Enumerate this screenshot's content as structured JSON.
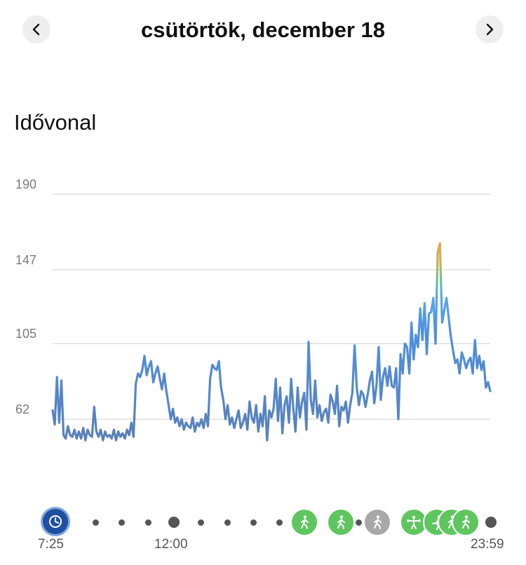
{
  "header": {
    "date_title": "csütörtök, december 18",
    "prev_icon": "chevron-left-icon",
    "next_icon": "chevron-right-icon"
  },
  "section": {
    "title": "Idővonal"
  },
  "chart_data": {
    "type": "line",
    "title": "",
    "xlabel": "",
    "ylabel": "",
    "y_ticks": [
      "190",
      "147",
      "105",
      "62"
    ],
    "ylim": [
      20,
      195
    ],
    "x_range": [
      "7:25",
      "23:59"
    ],
    "grid": true,
    "series": [
      {
        "values": [
          67,
          59,
          86,
          60,
          84,
          53,
          51,
          58,
          53,
          52,
          56,
          51,
          55,
          51,
          57,
          50,
          56,
          53,
          52,
          69,
          55,
          52,
          56,
          50,
          55,
          52,
          53,
          51,
          56,
          50,
          55,
          52,
          54,
          51,
          56,
          53,
          60,
          52,
          82,
          88,
          86,
          90,
          98,
          87,
          92,
          95,
          83,
          88,
          92,
          85,
          79,
          88,
          78,
          70,
          62,
          68,
          60,
          63,
          58,
          62,
          56,
          60,
          58,
          57,
          63,
          55,
          60,
          58,
          62,
          57,
          65,
          58,
          85,
          93,
          91,
          90,
          95,
          80,
          73,
          62,
          70,
          59,
          63,
          57,
          62,
          67,
          57,
          60,
          65,
          56,
          72,
          63,
          60,
          70,
          55,
          65,
          58,
          75,
          50,
          67,
          63,
          68,
          85,
          61,
          80,
          54,
          70,
          75,
          60,
          85,
          68,
          55,
          80,
          63,
          72,
          77,
          56,
          106,
          73,
          65,
          84,
          63,
          70,
          61,
          66,
          68,
          60,
          76,
          72,
          65,
          81,
          58,
          69,
          67,
          72,
          60,
          70,
          77,
          104,
          80,
          70,
          78,
          76,
          69,
          76,
          84,
          89,
          71,
          81,
          103,
          73,
          86,
          91,
          81,
          92,
          81,
          80,
          91,
          62,
          99,
          88,
          105,
          103,
          88,
          117,
          96,
          110,
          103,
          125,
          107,
          128,
          99,
          122,
          123,
          131,
          105,
          157,
          162,
          117,
          124,
          131,
          120,
          109,
          101,
          94,
          96,
          88,
          100,
          96,
          91,
          95,
          97,
          88,
          107,
          91,
          98,
          90,
          95,
          80,
          83,
          78
        ]
      }
    ]
  },
  "timeline": {
    "start_label": "7:25",
    "mid_label": "12:00",
    "end_label": "23:59",
    "icons": {
      "start": "clock-icon",
      "walk": "walking-person-icon",
      "strength": "strength-training-icon",
      "run": "running-person-icon"
    }
  },
  "colors": {
    "line_low": "#5a7fb4",
    "line_mid": "#4f95e8",
    "line_high": "#f3a24a",
    "activity_green": "#5fc55f",
    "activity_gray": "#a8a8a8",
    "start_badge": "#1f4fa0"
  }
}
